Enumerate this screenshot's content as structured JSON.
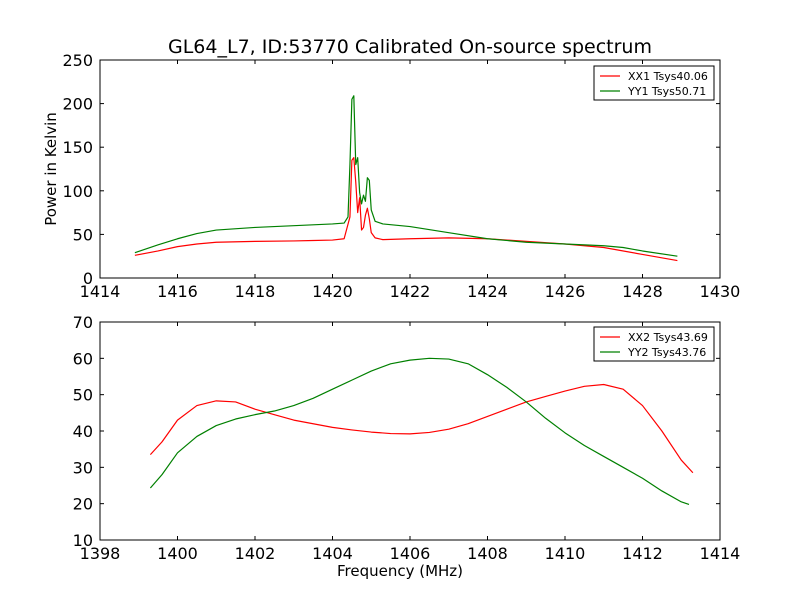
{
  "figure": {
    "title": "GL64_L7, ID:53770 Calibrated On-source spectrum"
  },
  "chart_data": [
    {
      "type": "line",
      "title": "GL64_L7, ID:53770 Calibrated On-source spectrum",
      "xlabel": "",
      "ylabel": "Power in Kelvin",
      "xlim": [
        1414,
        1430
      ],
      "ylim": [
        0,
        250
      ],
      "xticks": [
        1414,
        1416,
        1418,
        1420,
        1422,
        1424,
        1426,
        1428,
        1430
      ],
      "yticks": [
        0,
        50,
        100,
        150,
        200,
        250
      ],
      "grid": false,
      "legend": "top-right",
      "series": [
        {
          "name": "XX1 Tsys40.06",
          "color": "#ff0000",
          "x": [
            1414.9,
            1415.5,
            1416,
            1416.5,
            1417,
            1418,
            1419,
            1419.5,
            1420,
            1420.3,
            1420.45,
            1420.5,
            1420.55,
            1420.6,
            1420.65,
            1420.7,
            1420.75,
            1420.8,
            1420.85,
            1420.9,
            1420.95,
            1421,
            1421.1,
            1421.3,
            1422,
            1423,
            1424,
            1425,
            1426,
            1427,
            1428,
            1428.9
          ],
          "y": [
            26,
            31,
            36,
            39,
            41,
            42,
            42.5,
            43,
            43.5,
            45,
            70,
            135,
            138,
            110,
            75,
            92,
            55,
            58,
            72,
            80,
            68,
            52,
            46,
            44,
            45,
            46,
            45,
            42,
            39,
            35,
            27,
            20
          ]
        },
        {
          "name": "YY1 Tsys50.71",
          "color": "#008000",
          "x": [
            1414.9,
            1415.5,
            1416,
            1416.5,
            1417,
            1418,
            1419,
            1419.5,
            1420,
            1420.3,
            1420.4,
            1420.45,
            1420.5,
            1420.55,
            1420.6,
            1420.65,
            1420.7,
            1420.75,
            1420.8,
            1420.85,
            1420.9,
            1420.95,
            1421,
            1421.1,
            1421.3,
            1422,
            1423,
            1424,
            1425,
            1426,
            1427,
            1427.5,
            1428,
            1428.9
          ],
          "y": [
            29,
            38,
            45,
            51,
            55,
            58,
            60,
            61,
            62,
            63,
            70,
            130,
            205,
            209,
            130,
            138,
            98,
            85,
            95,
            88,
            115,
            112,
            78,
            65,
            62,
            59,
            52,
            45,
            41,
            39,
            37,
            35,
            31,
            25
          ]
        }
      ]
    },
    {
      "type": "line",
      "title": "",
      "xlabel": "Frequency (MHz)",
      "ylabel": "",
      "xlim": [
        1398,
        1414
      ],
      "ylim": [
        10,
        70
      ],
      "xticks": [
        1398,
        1400,
        1402,
        1404,
        1406,
        1408,
        1410,
        1412,
        1414
      ],
      "yticks": [
        10,
        20,
        30,
        40,
        50,
        60,
        70
      ],
      "grid": false,
      "legend": "top-right",
      "series": [
        {
          "name": "XX2 Tsys43.69",
          "color": "#ff0000",
          "x": [
            1399.3,
            1399.6,
            1400,
            1400.5,
            1401,
            1401.5,
            1402,
            1402.5,
            1403,
            1403.5,
            1404,
            1404.5,
            1405,
            1405.5,
            1406,
            1406.5,
            1407,
            1407.5,
            1408,
            1408.5,
            1409,
            1409.5,
            1410,
            1410.5,
            1411,
            1411.5,
            1412,
            1412.5,
            1413,
            1413.3
          ],
          "y": [
            33.5,
            37,
            43,
            47,
            48.3,
            48,
            46,
            44.5,
            43,
            42,
            41,
            40.3,
            39.7,
            39.3,
            39.2,
            39.6,
            40.5,
            42,
            44,
            46,
            48,
            49.5,
            51,
            52.3,
            52.8,
            51.5,
            47,
            40,
            32,
            28.5
          ]
        },
        {
          "name": "YY2 Tsys43.76",
          "color": "#008000",
          "x": [
            1399.3,
            1399.6,
            1400,
            1400.5,
            1401,
            1401.5,
            1402,
            1402.5,
            1403,
            1403.5,
            1404,
            1404.5,
            1405,
            1405.5,
            1406,
            1406.5,
            1407,
            1407.5,
            1408,
            1408.5,
            1409,
            1409.5,
            1410,
            1410.5,
            1411,
            1411.5,
            1412,
            1412.5,
            1413,
            1413.2
          ],
          "y": [
            24.3,
            28,
            34,
            38.5,
            41.5,
            43.3,
            44.5,
            45.5,
            47,
            49,
            51.5,
            54,
            56.5,
            58.5,
            59.5,
            60,
            59.8,
            58.5,
            55.5,
            52,
            48,
            43.5,
            39.5,
            36,
            33,
            30,
            27,
            23.5,
            20.5,
            19.8
          ]
        }
      ]
    }
  ]
}
